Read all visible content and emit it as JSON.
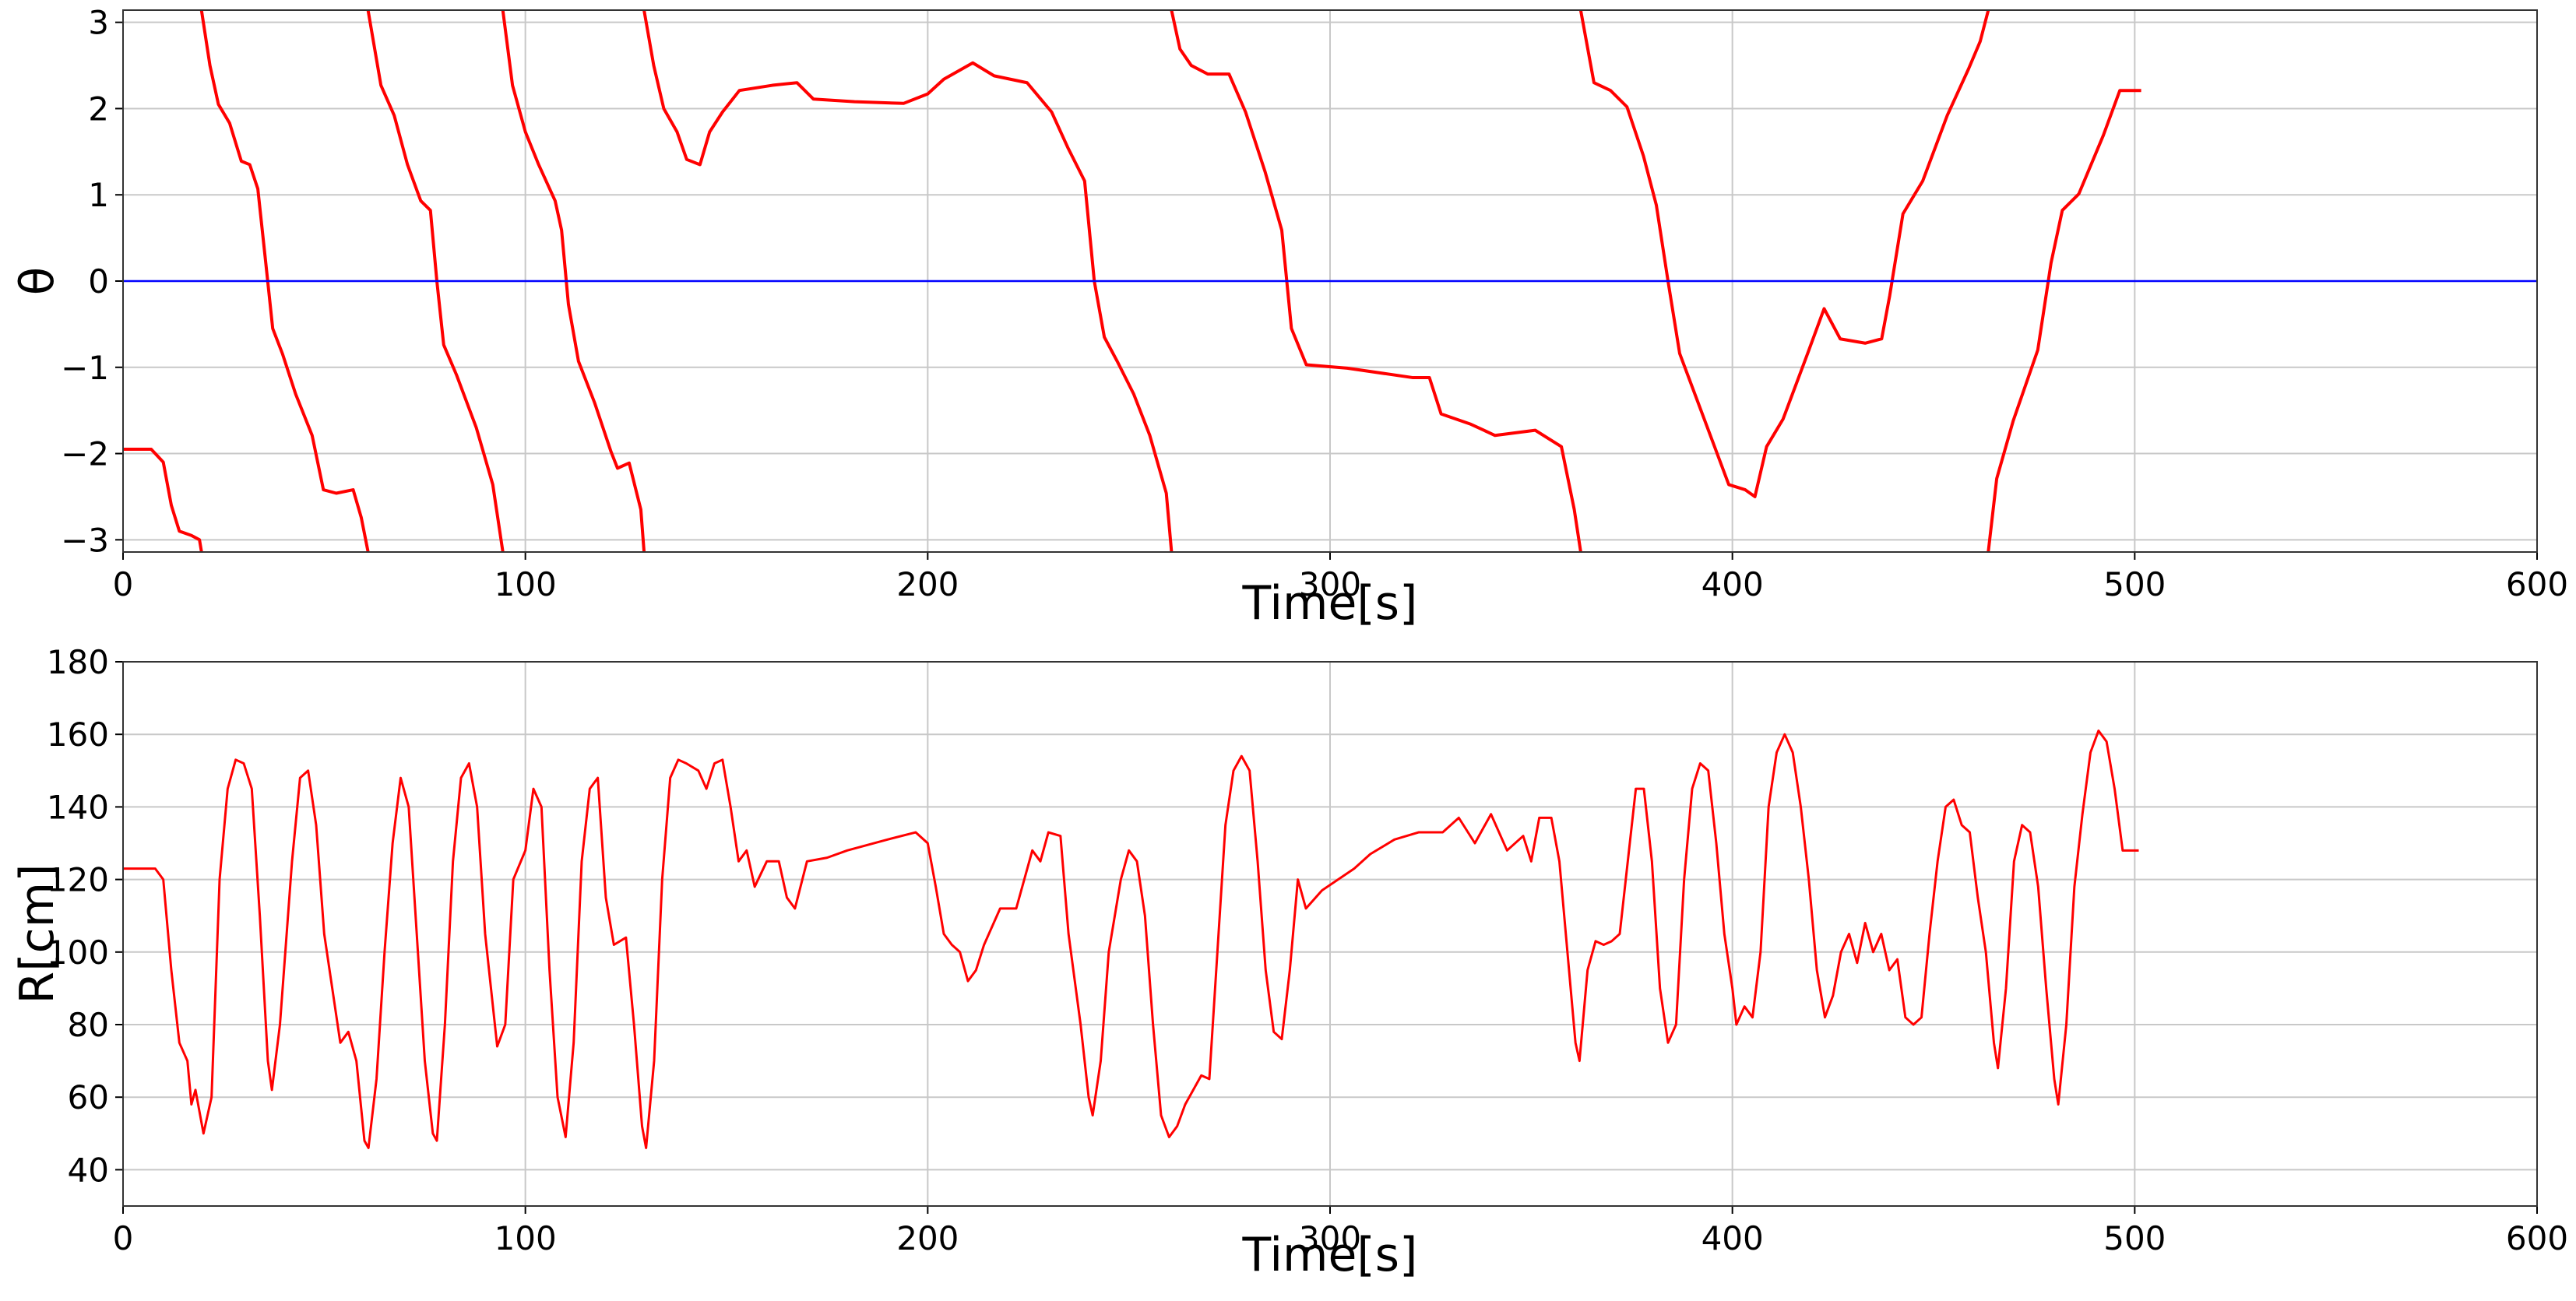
{
  "chart_data": [
    {
      "type": "line",
      "xlabel": "Time[s]",
      "ylabel": "θ",
      "xlim": [
        0,
        600
      ],
      "ylim": [
        -3.1416,
        3.1416
      ],
      "xticks": [
        0,
        100,
        200,
        300,
        400,
        500,
        600
      ],
      "yticks": [
        {
          "value": -3,
          "label": "−3"
        },
        {
          "value": -2,
          "label": "−2"
        },
        {
          "value": -1,
          "label": "−1"
        },
        0,
        1,
        2,
        3
      ],
      "grid": true,
      "series": [
        {
          "color": "#ff0000",
          "x": [
            0,
            7,
            8,
            10,
            12,
            14,
            17,
            19,
            19.5,
            19.5,
            19.5,
            21.6,
            23.7,
            26.5,
            29.4,
            31.5,
            33.5,
            35.5,
            37.2,
            39.6,
            42.9,
            47,
            49.8,
            53,
            57.2,
            59.2,
            60.9,
            60.9,
            60.9,
            64.1,
            67.4,
            70.7,
            74,
            76.4,
            78,
            79.7,
            82.9,
            87.8,
            91.9,
            94.4,
            94.4,
            94.4,
            96.8,
            100,
            103.3,
            107.4,
            109,
            110.7,
            113.2,
            117.2,
            121.3,
            122.9,
            125.8,
            128.7,
            129.5,
            129.5,
            129.5,
            131.9,
            134.4,
            137.7,
            140.1,
            143.4,
            145.8,
            149,
            153.2,
            161.4,
            167.5,
            171.6,
            181.8,
            194,
            200,
            204,
            211.2,
            216.5,
            224.7,
            230.8,
            234.9,
            239,
            241.4,
            243.9,
            247.1,
            251.2,
            255.2,
            259.3,
            260.6,
            260.6,
            260.6,
            262.7,
            265.5,
            269.6,
            274.9,
            279,
            283.9,
            288,
            290.4,
            294.1,
            304.3,
            320.6,
            324.7,
            327.6,
            335,
            341,
            351,
            357.5,
            360.7,
            362.3,
            362.3,
            362.3,
            365.6,
            369.7,
            373.8,
            377.9,
            381.1,
            384,
            386.9,
            392.2,
            399.1,
            403.2,
            405.6,
            408.5,
            412.6,
            418.7,
            422.8,
            426.8,
            433,
            437.1,
            439.1,
            442.4,
            447.3,
            453.4,
            458.7,
            461.6,
            463.6,
            463.6,
            463.6,
            465.7,
            469.8,
            475.9,
            479.2,
            482,
            486.1,
            492.2,
            496.3,
            501.6
          ],
          "values": [
            -1.95,
            -1.95,
            -2.0,
            -2.1,
            -2.6,
            -2.9,
            -2.95,
            -3.0,
            -3.14,
            null,
            3.14,
            2.5,
            2.05,
            1.83,
            1.39,
            1.35,
            1.07,
            0.2,
            -0.55,
            -0.84,
            -1.31,
            -1.79,
            -2.42,
            -2.46,
            -2.42,
            -2.74,
            -3.14,
            null,
            3.14,
            2.27,
            1.92,
            1.35,
            0.93,
            0.82,
            0,
            -0.74,
            -1.09,
            -1.7,
            -2.36,
            -3.14,
            null,
            3.14,
            2.27,
            1.73,
            1.35,
            0.93,
            0.59,
            -0.27,
            -0.93,
            -1.41,
            -1.98,
            -2.17,
            -2.11,
            -2.65,
            -3.14,
            null,
            3.14,
            2.5,
            2.0,
            1.73,
            1.41,
            1.35,
            1.73,
            1.96,
            2.21,
            2.27,
            2.3,
            2.11,
            2.08,
            2.06,
            2.17,
            2.34,
            2.53,
            2.38,
            2.3,
            1.96,
            1.54,
            1.16,
            0,
            -0.65,
            -0.93,
            -1.31,
            -1.79,
            -2.46,
            -3.14,
            null,
            3.14,
            2.69,
            2.5,
            2.4,
            2.4,
            1.96,
            1.26,
            0.59,
            -0.55,
            -0.97,
            -1.01,
            -1.12,
            -1.12,
            -1.54,
            -1.66,
            -1.79,
            -1.73,
            -1.92,
            -2.65,
            -3.14,
            null,
            3.14,
            2.3,
            2.21,
            2.02,
            1.45,
            0.88,
            0,
            -0.84,
            -1.5,
            -2.36,
            -2.42,
            -2.5,
            -1.92,
            -1.6,
            -0.84,
            -0.32,
            -0.67,
            -0.72,
            -0.67,
            -0.17,
            0.78,
            1.16,
            1.92,
            2.46,
            2.78,
            3.14,
            null,
            -3.14,
            -2.29,
            -1.62,
            -0.8,
            0.21,
            0.82,
            1.01,
            1.69,
            2.21,
            2.21
          ]
        },
        {
          "color": "#0000ff",
          "x": [
            0,
            600
          ],
          "values": [
            0,
            0
          ]
        }
      ]
    },
    {
      "type": "line",
      "xlabel": "Time[s]",
      "ylabel": "R[cm]",
      "xlim": [
        0,
        600
      ],
      "ylim": [
        30,
        180
      ],
      "xticks": [
        0,
        100,
        200,
        300,
        400,
        500,
        600
      ],
      "yticks": [
        40,
        60,
        80,
        100,
        120,
        140,
        160,
        180
      ],
      "grid": true,
      "series": [
        {
          "color": "#ff0000",
          "x": [
            0,
            8,
            10,
            12,
            14,
            16,
            17,
            18,
            20,
            22,
            24,
            26,
            28,
            30,
            32,
            34,
            36,
            37,
            39,
            42,
            44,
            46,
            48,
            50,
            52,
            54,
            56,
            58,
            60,
            61,
            63,
            65,
            67,
            69,
            71,
            73,
            75,
            77,
            78,
            80,
            82,
            84,
            86,
            88,
            90,
            93,
            95,
            97,
            100,
            102,
            104,
            106,
            108,
            110,
            112,
            114,
            116,
            118,
            120,
            122,
            125,
            127,
            129,
            130,
            132,
            134,
            136,
            138,
            140,
            143,
            145,
            147,
            149,
            151,
            153,
            155,
            157,
            160,
            163,
            165,
            167,
            170,
            175,
            180,
            190,
            197,
            200,
            202,
            204,
            206,
            208,
            210,
            212,
            214,
            218,
            222,
            224,
            226,
            228,
            230,
            233,
            235,
            238,
            240,
            241,
            243,
            245,
            248,
            250,
            252,
            254,
            256,
            258,
            260,
            262,
            264,
            266,
            268,
            270,
            272,
            274,
            276,
            278,
            280,
            282,
            284,
            286,
            288,
            290,
            292,
            294,
            298,
            302,
            306,
            310,
            316,
            322,
            328,
            332,
            336,
            340,
            344,
            348,
            350,
            352,
            355,
            357,
            359,
            361,
            362,
            364,
            366,
            368,
            370,
            372,
            374,
            376,
            378,
            380,
            382,
            384,
            386,
            388,
            390,
            392,
            394,
            396,
            398,
            400,
            401,
            403,
            405,
            407,
            409,
            411,
            413,
            415,
            417,
            419,
            421,
            423,
            425,
            427,
            429,
            431,
            433,
            435,
            437,
            439,
            441,
            443,
            445,
            447,
            449,
            451,
            453,
            455,
            457,
            459,
            461,
            463,
            465,
            466,
            468,
            470,
            472,
            474,
            476,
            478,
            480,
            481,
            483,
            485,
            487,
            489,
            491,
            493,
            495,
            497,
            501
          ],
          "values": [
            123,
            123,
            120,
            95,
            75,
            70,
            58,
            62,
            50,
            60,
            120,
            145,
            153,
            152,
            145,
            110,
            70,
            62,
            80,
            125,
            148,
            150,
            135,
            105,
            90,
            75,
            78,
            70,
            48,
            46,
            65,
            100,
            130,
            148,
            140,
            105,
            70,
            50,
            48,
            80,
            125,
            148,
            152,
            140,
            105,
            74,
            80,
            120,
            128,
            145,
            140,
            95,
            60,
            49,
            75,
            125,
            145,
            148,
            115,
            102,
            104,
            80,
            52,
            46,
            70,
            120,
            148,
            153,
            152,
            150,
            145,
            152,
            153,
            140,
            125,
            128,
            118,
            125,
            125,
            115,
            112,
            125,
            126,
            128,
            131,
            133,
            130,
            118,
            105,
            102,
            100,
            92,
            95,
            102,
            112,
            112,
            120,
            128,
            125,
            133,
            132,
            105,
            80,
            60,
            55,
            70,
            100,
            120,
            128,
            125,
            110,
            80,
            55,
            49,
            52,
            58,
            62,
            66,
            65,
            100,
            135,
            150,
            154,
            150,
            125,
            95,
            78,
            76,
            95,
            120,
            112,
            117,
            120,
            123,
            127,
            131,
            133,
            133,
            137,
            130,
            138,
            128,
            132,
            125,
            137,
            137,
            125,
            100,
            75,
            70,
            95,
            103,
            102,
            103,
            105,
            125,
            145,
            145,
            125,
            90,
            75,
            80,
            120,
            145,
            152,
            150,
            130,
            105,
            90,
            80,
            85,
            82,
            100,
            140,
            155,
            160,
            155,
            140,
            120,
            95,
            82,
            88,
            100,
            105,
            97,
            108,
            100,
            105,
            95,
            98,
            82,
            80,
            82,
            105,
            125,
            140,
            142,
            135,
            133,
            115,
            100,
            75,
            68,
            90,
            125,
            135,
            133,
            118,
            90,
            65,
            58,
            80,
            118,
            138,
            155,
            161,
            158,
            145,
            128,
            128
          ]
        }
      ]
    }
  ]
}
